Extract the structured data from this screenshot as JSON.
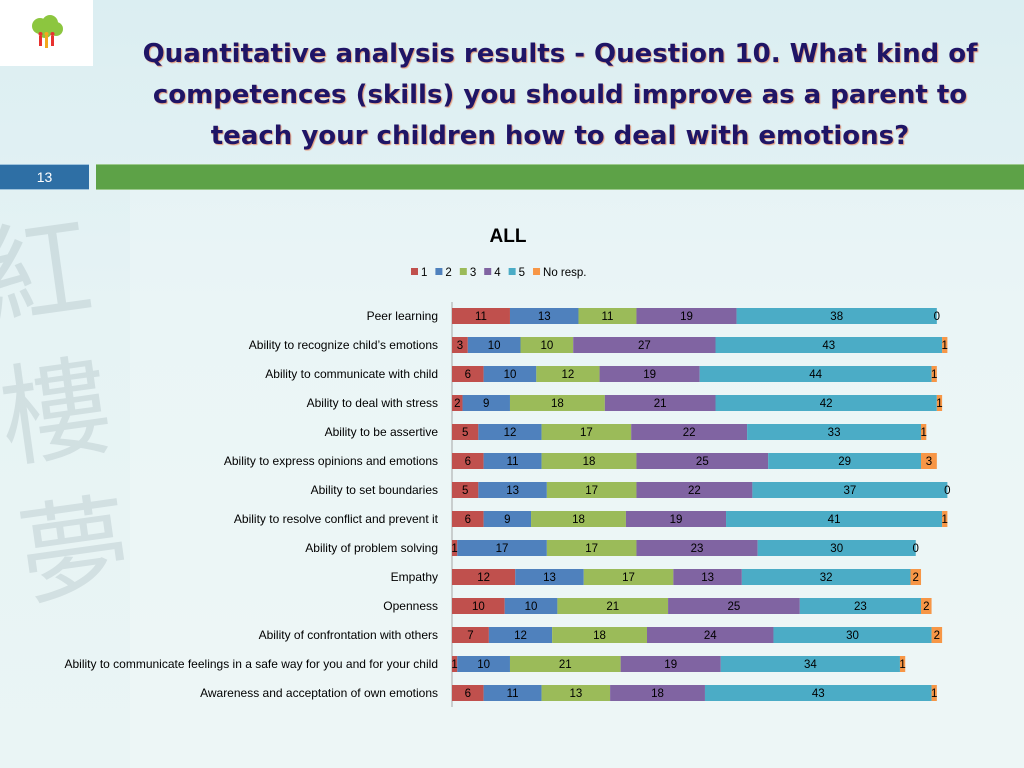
{
  "header": {
    "title": "Quantitative analysis results - Question 10. What kind of competences (skills) you should improve as a parent to teach your children how to deal with emotions?",
    "slide_number": "13"
  },
  "colors": {
    "1": "#c0504d",
    "2": "#4f81bd",
    "3": "#9bbb59",
    "4": "#8064a2",
    "5": "#4bacc6",
    "No resp.": "#f79646",
    "green_bar": "#5da247",
    "slide_number_bg": "#2e6fa5",
    "title_color": "#1f1566"
  },
  "chart_data": {
    "type": "bar",
    "orientation": "horizontal",
    "stacked": true,
    "title": "ALL",
    "legend_position": "top",
    "categories": [
      "Peer learning",
      "Ability to recognize child’s emotions",
      "Ability to communicate with child",
      "Ability to deal with stress",
      "Ability to be assertive",
      "Ability to express opinions and emotions",
      "Ability to set boundaries",
      "Ability to resolve conflict and prevent it",
      "Ability of problem solving",
      "Empathy",
      "Openness",
      "Ability of confrontation with others",
      "Ability to communicate feelings in a safe way for you and for your child",
      "Awareness and acceptation of own emotions"
    ],
    "series": [
      {
        "name": "1",
        "values": [
          11,
          3,
          6,
          2,
          5,
          6,
          5,
          6,
          1,
          12,
          10,
          7,
          1,
          6
        ]
      },
      {
        "name": "2",
        "values": [
          13,
          10,
          10,
          9,
          12,
          11,
          13,
          9,
          17,
          13,
          10,
          12,
          10,
          11
        ]
      },
      {
        "name": "3",
        "values": [
          11,
          10,
          12,
          18,
          17,
          18,
          17,
          18,
          17,
          17,
          21,
          18,
          21,
          13
        ]
      },
      {
        "name": "4",
        "values": [
          19,
          27,
          19,
          21,
          22,
          25,
          22,
          19,
          23,
          13,
          25,
          24,
          19,
          18
        ]
      },
      {
        "name": "5",
        "values": [
          38,
          43,
          44,
          42,
          33,
          29,
          37,
          41,
          30,
          32,
          23,
          30,
          34,
          43
        ]
      },
      {
        "name": "No resp.",
        "values": [
          0,
          1,
          1,
          1,
          1,
          3,
          0,
          1,
          0,
          2,
          2,
          2,
          1,
          1
        ]
      }
    ],
    "xlim": [
      0,
      100
    ],
    "grid": false
  }
}
